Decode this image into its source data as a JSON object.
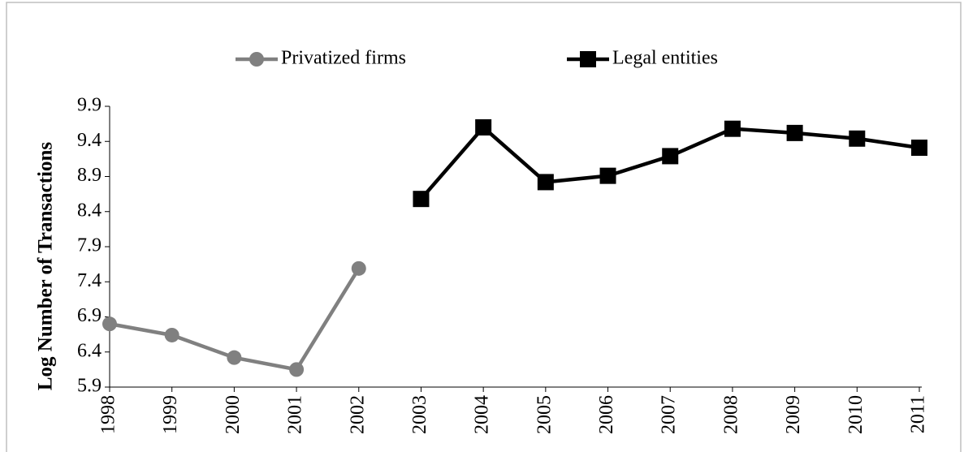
{
  "chart_data": {
    "type": "line",
    "y_label": "Log Number of Transactions",
    "categories": [
      "1998",
      "1999",
      "2000",
      "2001",
      "2002",
      "2003",
      "2004",
      "2005",
      "2006",
      "2007",
      "2008",
      "2009",
      "2010",
      "2011"
    ],
    "series": [
      {
        "name": "Privatized firms",
        "color": "#808080",
        "marker": "circle",
        "values": [
          6.8,
          6.64,
          6.32,
          6.15,
          7.59,
          null,
          null,
          null,
          null,
          null,
          null,
          null,
          null,
          null
        ]
      },
      {
        "name": "Legal entities",
        "color": "#000000",
        "marker": "square",
        "values": [
          null,
          null,
          null,
          null,
          null,
          8.58,
          9.6,
          8.82,
          8.91,
          9.19,
          9.58,
          9.52,
          9.44,
          9.31
        ]
      }
    ],
    "ylim": [
      5.9,
      9.9
    ],
    "yticks": [
      5.9,
      6.4,
      6.9,
      7.4,
      7.9,
      8.4,
      8.9,
      9.4,
      9.9
    ],
    "grid": false,
    "legend": "top"
  }
}
